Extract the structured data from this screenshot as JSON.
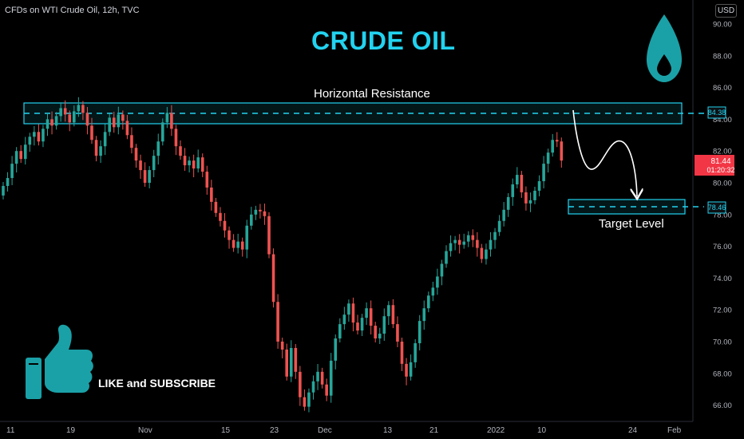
{
  "header": {
    "symbol": "CFDs on WTI Crude Oil, 12h, TVC",
    "currency": "USD"
  },
  "overlay": {
    "title": "CRUDE OIL",
    "resistance_label": "Horizontal Resistance",
    "target_label": "Target Level",
    "cta": "LIKE and SUBSCRIBE",
    "icons": [
      "oil-drop-icon",
      "thumbs-up-icon"
    ]
  },
  "colors": {
    "background": "#000000",
    "up": "#26a69a",
    "down": "#ef5350",
    "accent": "#22d3f0",
    "price_tag": "#f23645"
  },
  "chart_data": {
    "type": "candlestick",
    "timeframe": "12h",
    "ylim": [
      65,
      91
    ],
    "yticks": [
      "90.00",
      "88.00",
      "86.00",
      "84.00",
      "82.00",
      "80.00",
      "78.00",
      "76.00",
      "74.00",
      "72.00",
      "70.00",
      "68.00",
      "66.00"
    ],
    "xticks": [
      "11",
      "19",
      "Nov",
      "15",
      "23",
      "Dec",
      "13",
      "21",
      "2022",
      "10",
      "24",
      "Feb"
    ],
    "close_series": [
      79.8,
      80.3,
      81.2,
      82.0,
      81.5,
      82.4,
      82.9,
      83.2,
      82.6,
      83.4,
      84.0,
      83.6,
      84.2,
      84.7,
      84.3,
      83.8,
      84.5,
      84.9,
      84.4,
      83.6,
      82.7,
      81.7,
      82.3,
      83.2,
      84.1,
      83.5,
      84.3,
      83.9,
      83.0,
      82.2,
      81.4,
      80.8,
      80.0,
      80.8,
      81.7,
      82.6,
      83.8,
      84.4,
      83.4,
      82.3,
      81.7,
      81.1,
      81.4,
      80.9,
      81.6,
      80.7,
      79.7,
      78.8,
      78.1,
      77.6,
      77.0,
      76.4,
      75.9,
      76.3,
      75.8,
      77.3,
      78.0,
      78.3,
      78.2,
      77.9,
      75.5,
      72.5,
      70.0,
      69.5,
      67.8,
      69.6,
      68.1,
      66.5,
      65.9,
      66.8,
      67.5,
      68.1,
      67.3,
      66.6,
      68.8,
      70.2,
      71.1,
      71.7,
      72.4,
      71.2,
      70.7,
      71.5,
      72.1,
      71.0,
      70.2,
      70.5,
      71.6,
      72.3,
      71.1,
      70.0,
      68.6,
      67.8,
      68.7,
      69.9,
      71.3,
      72.1,
      72.9,
      73.4,
      74.1,
      74.9,
      75.7,
      76.2,
      76.4,
      76.1,
      76.3,
      76.7,
      76.4,
      75.9,
      75.2,
      75.8,
      76.4,
      76.9,
      77.6,
      78.3,
      79.1,
      79.9,
      80.5,
      79.4,
      78.7,
      78.9,
      79.5,
      80.1,
      81.2,
      81.9,
      82.7,
      82.6,
      81.4
    ],
    "last_price": "81.44",
    "countdown": "01:20:32",
    "levels": [
      {
        "name": "Horizontal Resistance",
        "value": 84.38,
        "tag": "84.38"
      },
      {
        "name": "Target Level",
        "value": 78.46,
        "tag": "78.46"
      }
    ],
    "grid": false
  }
}
